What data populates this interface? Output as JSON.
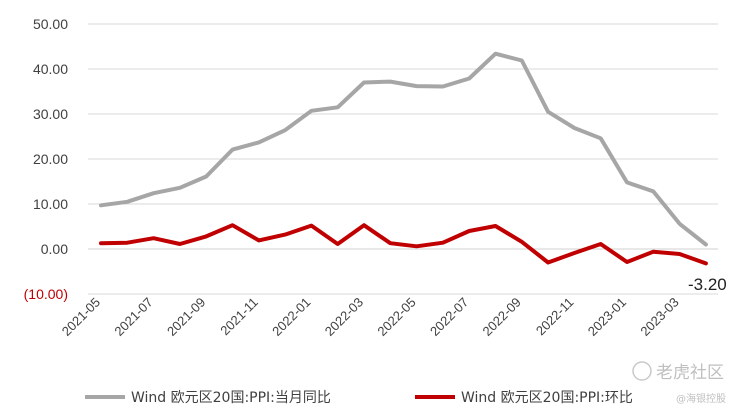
{
  "chart_data": {
    "type": "line",
    "x": [
      "2021-05",
      "2021-06",
      "2021-07",
      "2021-08",
      "2021-09",
      "2021-10",
      "2021-11",
      "2021-12",
      "2022-01",
      "2022-02",
      "2022-03",
      "2022-04",
      "2022-05",
      "2022-06",
      "2022-07",
      "2022-08",
      "2022-09",
      "2022-10",
      "2022-11",
      "2022-12",
      "2023-01",
      "2023-02",
      "2023-03",
      "2023-04"
    ],
    "x_tick_labels": [
      "2021-05",
      "2021-07",
      "2021-09",
      "2021-11",
      "2022-01",
      "2022-03",
      "2022-05",
      "2022-07",
      "2022-09",
      "2022-11",
      "2023-01",
      "2023-03"
    ],
    "y_tick_labels": [
      "50.00",
      "40.00",
      "30.00",
      "20.00",
      "10.00",
      "0.00",
      "(10.00)"
    ],
    "ylim": [
      -10,
      50
    ],
    "grid": true,
    "legend_position": "bottom",
    "series": [
      {
        "name": "Wind 欧元区20国:PPI:当月同比",
        "color": "#a6a6a6",
        "values": [
          9.7,
          10.5,
          12.4,
          13.6,
          16.1,
          22.1,
          23.7,
          26.4,
          30.7,
          31.5,
          37.0,
          37.2,
          36.2,
          36.1,
          37.9,
          43.4,
          41.9,
          30.5,
          26.9,
          24.6,
          14.8,
          12.8,
          5.6,
          1.0
        ]
      },
      {
        "name": "Wind 欧元区20国:PPI:环比",
        "color": "#c00000",
        "values": [
          1.3,
          1.4,
          2.4,
          1.1,
          2.8,
          5.3,
          1.9,
          3.2,
          5.2,
          1.1,
          5.3,
          1.3,
          0.6,
          1.4,
          4.0,
          5.1,
          1.6,
          -3.0,
          -0.9,
          1.1,
          -2.9,
          -0.6,
          -1.1,
          -3.2
        ]
      }
    ],
    "annotations": [
      {
        "text": "-3.20"
      }
    ]
  },
  "watermark": {
    "text": "老虎社区",
    "sub": "@海银控股"
  }
}
